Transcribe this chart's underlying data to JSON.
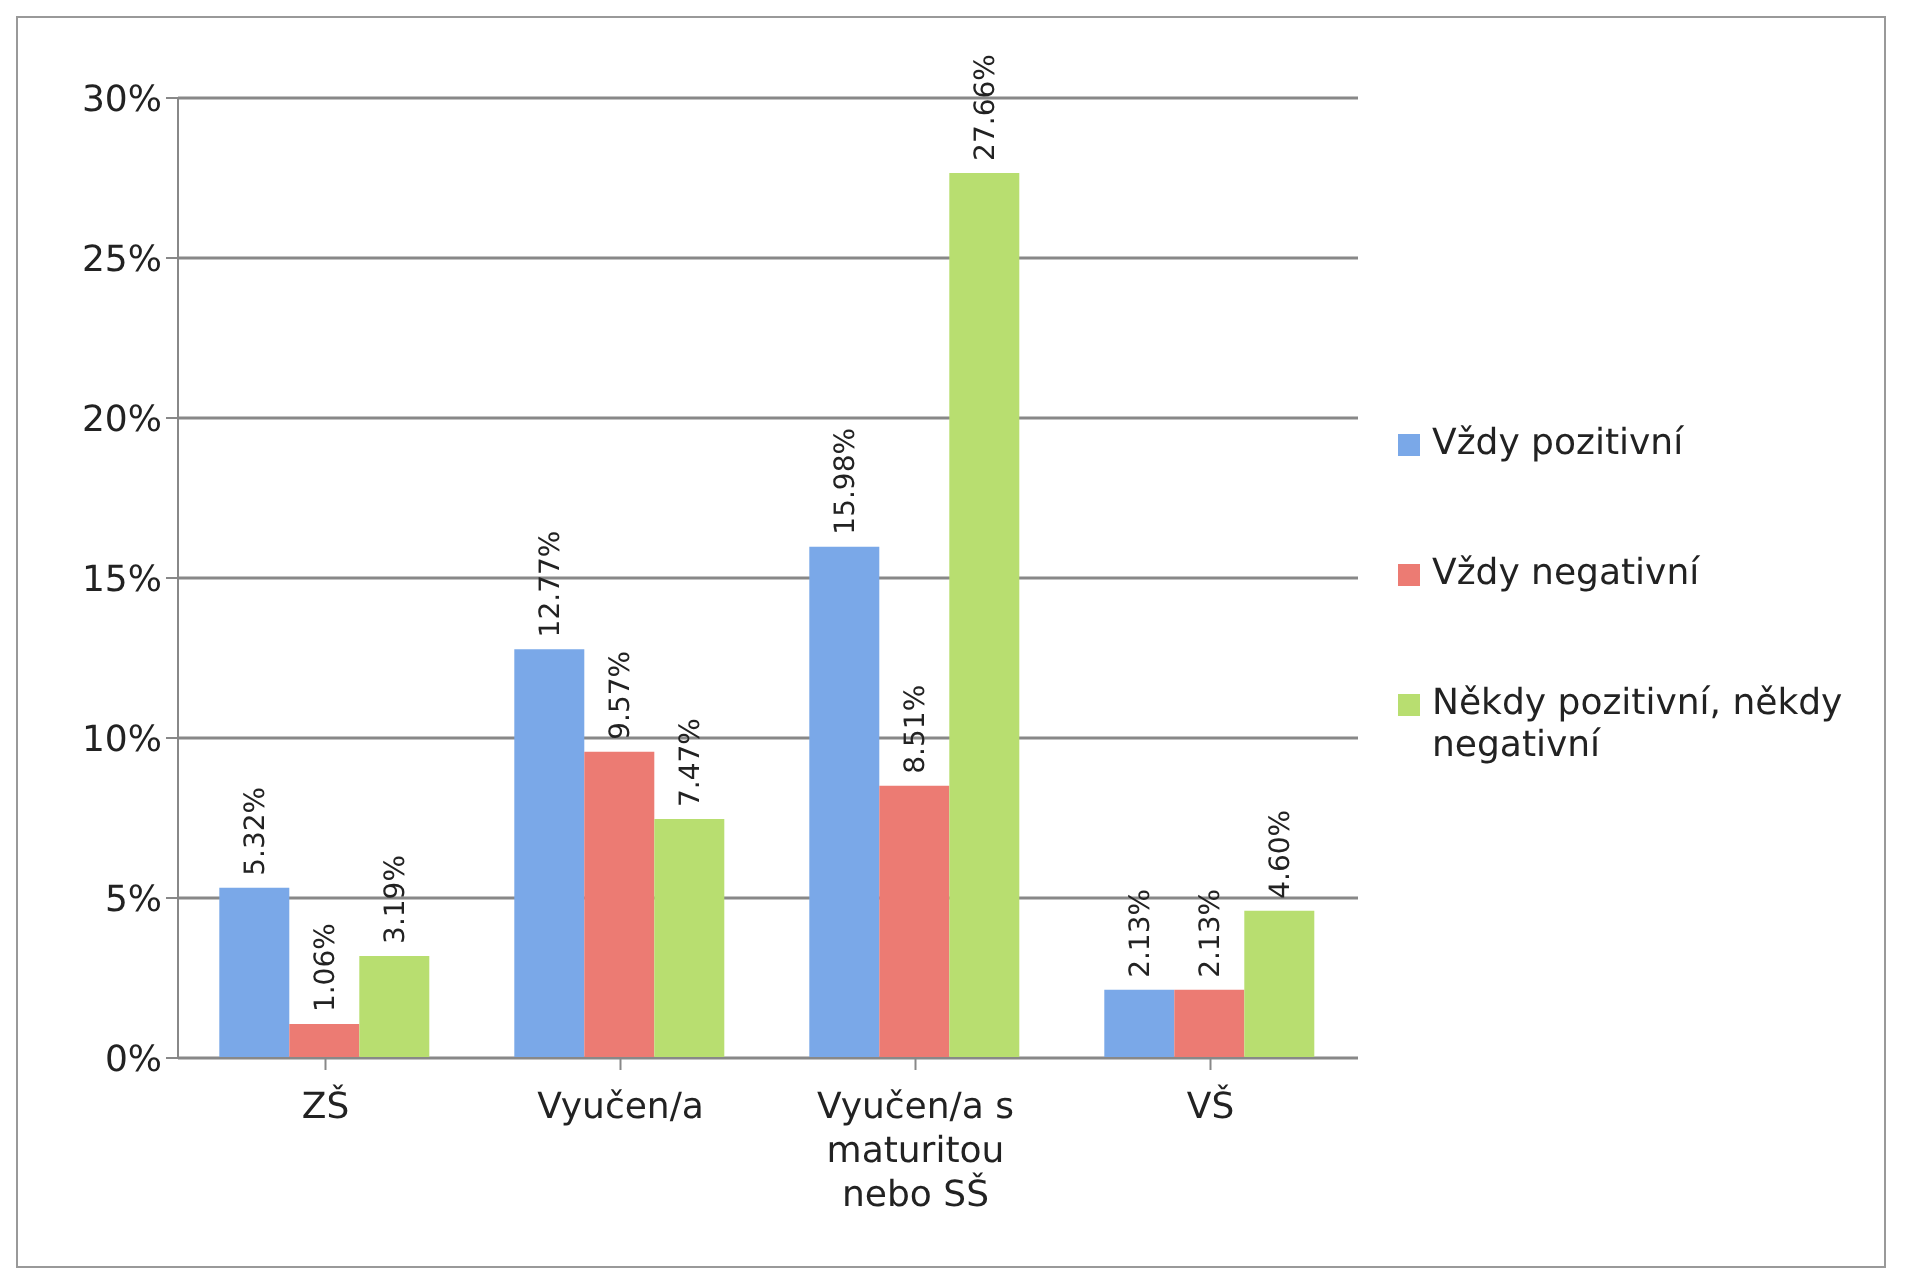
{
  "chart_data": {
    "type": "bar",
    "categories": [
      "ZŠ",
      "Vyučen/a",
      "Vyučen/a s maturitou nebo SŠ",
      "VŠ"
    ],
    "series": [
      {
        "name": "Vždy pozitivní",
        "color": "#7aa8e8",
        "values": [
          5.32,
          12.77,
          15.98,
          2.13
        ],
        "value_labels": [
          "5.32%",
          "12.77%",
          "15.98%",
          "2.13%"
        ]
      },
      {
        "name": "Vždy negativní",
        "color": "#ec7b73",
        "values": [
          1.06,
          9.57,
          8.51,
          2.13
        ],
        "value_labels": [
          "1.06%",
          "9.57%",
          "8.51%",
          "2.13%"
        ]
      },
      {
        "name": "Někdy pozitivní, někdy negativní",
        "color": "#b8de70",
        "values": [
          3.19,
          7.47,
          27.66,
          4.6
        ],
        "value_labels": [
          "3.19%",
          "7.47%",
          "27.66%",
          "4.60%"
        ]
      }
    ],
    "ylim": [
      0,
      30
    ],
    "yticks": [
      {
        "value": 0,
        "label": "0%"
      },
      {
        "value": 5,
        "label": "5%"
      },
      {
        "value": 10,
        "label": "10%"
      },
      {
        "value": 15,
        "label": "15%"
      },
      {
        "value": 20,
        "label": "20%"
      },
      {
        "value": 25,
        "label": "25%"
      },
      {
        "value": 30,
        "label": "30%"
      }
    ],
    "grid": "y",
    "legend": "right"
  }
}
